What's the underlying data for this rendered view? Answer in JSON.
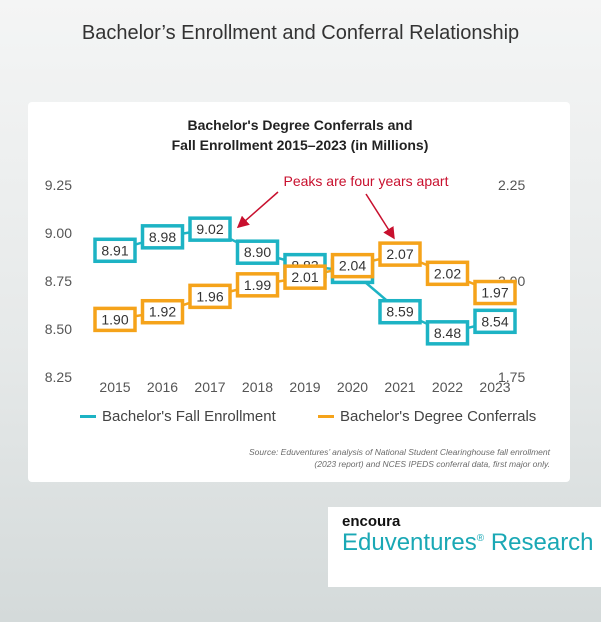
{
  "page": {
    "title": "Bachelor’s Enrollment and Conferral Relationship"
  },
  "chart_data": {
    "type": "line",
    "title_line1": "Bachelor's Degree Conferrals and",
    "title_line2": "Fall Enrollment 2015–2023 (in Millions)",
    "x": [
      "2015",
      "2016",
      "2017",
      "2018",
      "2019",
      "2020",
      "2021",
      "2022",
      "2023"
    ],
    "y_left_ticks": [
      "9.25",
      "9.00",
      "8.75",
      "8.50",
      "8.25"
    ],
    "y_right_ticks": [
      "2.25",
      "2.00",
      "1.75"
    ],
    "ylim_left": [
      8.25,
      9.25
    ],
    "ylim_right": [
      1.75,
      2.25
    ],
    "grid": false,
    "legend_position": "bottom",
    "series": [
      {
        "name": "Bachelor's Fall Enrollment",
        "axis": "left",
        "color": "#1db3c4",
        "values": [
          8.91,
          8.98,
          9.02,
          8.9,
          8.83,
          8.8,
          8.59,
          8.48,
          8.54
        ],
        "labels": [
          "8.91",
          "8.98",
          "9.02",
          "8.90",
          "8.83",
          "8.80",
          "8.59",
          "8.48",
          "8.54"
        ]
      },
      {
        "name": "Bachelor's Degree Conferrals",
        "axis": "right",
        "color": "#f5a31a",
        "values": [
          1.9,
          1.92,
          1.96,
          1.99,
          2.01,
          2.04,
          2.07,
          2.02,
          1.97
        ],
        "labels": [
          "1.90",
          "1.92",
          "1.96",
          "1.99",
          "2.01",
          "2.04",
          "2.07",
          "2.02",
          "1.97"
        ]
      }
    ],
    "annotation": {
      "text": "Peaks are four years apart",
      "color": "#c8102e",
      "points_to": [
        "2017",
        "2021"
      ]
    }
  },
  "source": {
    "line1": "Source: Eduventures’ analysis of National Student Clearinghouse fall enrollment",
    "line2": "(2023 report) and NCES IPEDS conferral data, first major only."
  },
  "logo": {
    "brand": "encoura",
    "name": "Eduventures",
    "mark": "®",
    "suffix": "Research"
  }
}
